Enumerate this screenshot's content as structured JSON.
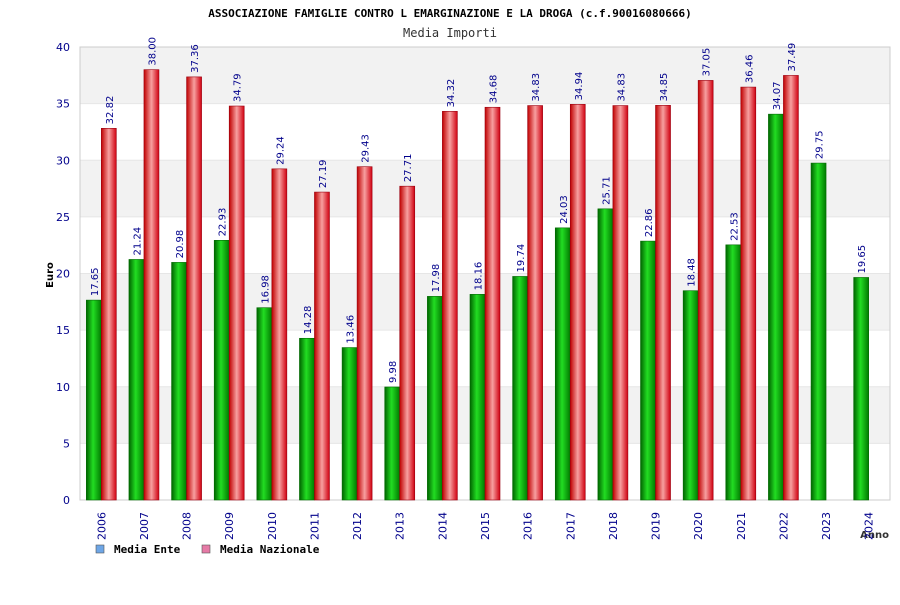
{
  "chart_data": {
    "type": "bar",
    "title": "ASSOCIAZIONE FAMIGLIE CONTRO L EMARGINAZIONE E LA DROGA (c.f.90016080666)",
    "subtitle": "Media Importi",
    "xlabel": "Anno",
    "ylabel": "Euro",
    "ylim": [
      0,
      40
    ],
    "yticks": [
      0,
      5,
      10,
      15,
      20,
      25,
      30,
      35,
      40
    ],
    "grid": true,
    "categories": [
      "2006",
      "2007",
      "2008",
      "2009",
      "2010",
      "2011",
      "2012",
      "2013",
      "2014",
      "2015",
      "2016",
      "2017",
      "2018",
      "2019",
      "2020",
      "2021",
      "2022",
      "2023",
      "2024"
    ],
    "series": [
      {
        "name": "Media Ente",
        "color": "#00b000",
        "legend_color": "#6ea6e6",
        "values": [
          17.65,
          21.24,
          20.98,
          22.93,
          16.98,
          14.28,
          13.46,
          9.98,
          17.98,
          18.16,
          19.74,
          24.03,
          25.71,
          22.86,
          18.48,
          22.53,
          34.07,
          29.75,
          19.65
        ],
        "labels": [
          "17.65",
          "21.24",
          "20.98",
          "22.93",
          "16.98",
          "14.28",
          "13.46",
          "9.98",
          "17.98",
          "18.16",
          "19.74",
          "24.03",
          "25.71",
          "22.86",
          "18.48",
          "22.53",
          "34.07",
          "29.75",
          "19.65"
        ]
      },
      {
        "name": "Media Nazionale",
        "color": "#e8141c",
        "legend_color": "#e67aa6",
        "values": [
          32.82,
          38.0,
          37.36,
          34.79,
          29.24,
          27.19,
          29.43,
          27.71,
          34.32,
          34.68,
          34.83,
          34.94,
          34.83,
          34.85,
          37.05,
          36.46,
          37.49,
          null,
          null
        ],
        "labels": [
          "32.82",
          "38.00",
          "37.36",
          "34.79",
          "29.24",
          "27.19",
          "29.43",
          "27.71",
          "34.32",
          "34.68",
          "34.83",
          "34.94",
          "34.83",
          "34.85",
          "37.05",
          "36.46",
          "37.49",
          null,
          null
        ]
      }
    ],
    "legend_position": "bottom-left"
  }
}
